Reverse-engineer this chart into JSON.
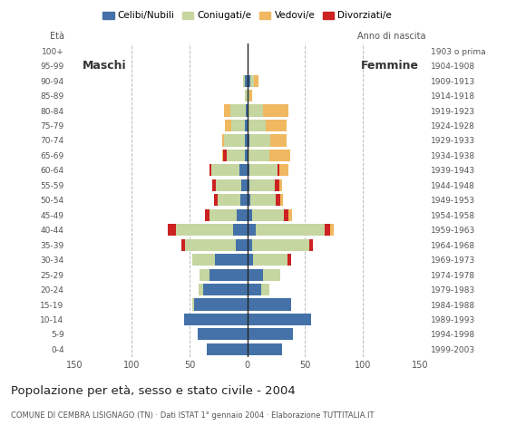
{
  "age_groups": [
    "0-4",
    "5-9",
    "10-14",
    "15-19",
    "20-24",
    "25-29",
    "30-34",
    "35-39",
    "40-44",
    "45-49",
    "50-54",
    "55-59",
    "60-64",
    "65-69",
    "70-74",
    "75-79",
    "80-84",
    "85-89",
    "90-94",
    "95-99",
    "100+"
  ],
  "birth_years": [
    "1999-2003",
    "1994-1998",
    "1989-1993",
    "1984-1988",
    "1979-1983",
    "1974-1978",
    "1969-1973",
    "1964-1968",
    "1959-1963",
    "1954-1958",
    "1949-1953",
    "1944-1948",
    "1939-1943",
    "1934-1938",
    "1929-1933",
    "1924-1928",
    "1919-1923",
    "1914-1918",
    "1909-1913",
    "1904-1908",
    "1903 o prima"
  ],
  "males": {
    "celibe": [
      35,
      43,
      55,
      46,
      38,
      33,
      28,
      10,
      12,
      9,
      6,
      5,
      7,
      2,
      2,
      2,
      1,
      0,
      2,
      0,
      0
    ],
    "coniugato": [
      0,
      0,
      0,
      2,
      4,
      8,
      20,
      44,
      50,
      24,
      20,
      22,
      24,
      16,
      18,
      12,
      14,
      2,
      2,
      0,
      0
    ],
    "vedovo": [
      0,
      0,
      0,
      0,
      0,
      0,
      0,
      0,
      0,
      0,
      0,
      0,
      0,
      1,
      2,
      5,
      5,
      0,
      0,
      0,
      0
    ],
    "divorziato": [
      0,
      0,
      0,
      0,
      0,
      0,
      0,
      3,
      7,
      4,
      3,
      3,
      2,
      3,
      0,
      0,
      0,
      0,
      0,
      0,
      0
    ]
  },
  "females": {
    "nubile": [
      30,
      40,
      55,
      38,
      12,
      14,
      5,
      4,
      7,
      4,
      3,
      2,
      2,
      1,
      2,
      1,
      0,
      0,
      3,
      0,
      0
    ],
    "coniugata": [
      0,
      0,
      0,
      0,
      7,
      15,
      30,
      50,
      60,
      28,
      22,
      22,
      24,
      18,
      18,
      15,
      14,
      2,
      3,
      0,
      0
    ],
    "vedova": [
      0,
      0,
      0,
      0,
      0,
      0,
      0,
      0,
      3,
      3,
      2,
      2,
      8,
      18,
      14,
      18,
      22,
      2,
      4,
      0,
      0
    ],
    "divorziata": [
      0,
      0,
      0,
      0,
      0,
      0,
      3,
      3,
      5,
      4,
      4,
      4,
      2,
      0,
      0,
      0,
      0,
      0,
      0,
      0,
      0
    ]
  },
  "colors": {
    "celibe": "#4472a8",
    "coniugato": "#c5d6a0",
    "vedovo": "#f0b860",
    "divorziato": "#cc2222"
  },
  "xlim": 155,
  "title": "Popolazione per età, sesso e stato civile - 2004",
  "subtitle": "COMUNE DI CEMBRA LISIGNAGO (TN) · Dati ISTAT 1° gennaio 2004 · Elaborazione TUTTITALIA.IT",
  "xlabel_left": "Età",
  "xlabel_right": "Anno di nascita",
  "label_maschi": "Maschi",
  "label_femmine": "Femmine",
  "legend_labels": [
    "Celibi/Nubili",
    "Coniugati/e",
    "Vedovi/e",
    "Divorziati/e"
  ],
  "bg_color": "#ffffff",
  "grid_color": "#bbbbbb"
}
